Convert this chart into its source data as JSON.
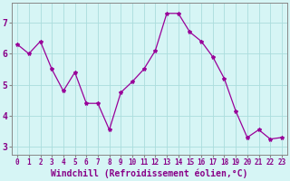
{
  "x": [
    0,
    1,
    2,
    3,
    4,
    5,
    6,
    7,
    8,
    9,
    10,
    11,
    12,
    13,
    14,
    15,
    16,
    17,
    18,
    19,
    20,
    21,
    22,
    23
  ],
  "y": [
    6.3,
    6.0,
    6.4,
    5.5,
    4.8,
    5.4,
    4.4,
    4.4,
    3.55,
    4.75,
    5.1,
    5.5,
    6.1,
    7.3,
    7.3,
    6.7,
    6.4,
    5.9,
    5.2,
    4.15,
    3.3,
    3.55,
    3.25,
    3.3
  ],
  "line_color": "#990099",
  "marker": "*",
  "marker_size": 3,
  "bg_color": "#d6f5f5",
  "grid_color": "#aadddd",
  "xlabel": "Windchill (Refroidissement éolien,°C)",
  "xlabel_fontsize": 7,
  "ylabel_ticks": [
    3,
    4,
    5,
    6,
    7
  ],
  "xtick_labels": [
    "0",
    "1",
    "2",
    "3",
    "4",
    "5",
    "6",
    "7",
    "8",
    "9",
    "10",
    "11",
    "12",
    "13",
    "14",
    "15",
    "16",
    "17",
    "18",
    "19",
    "20",
    "21",
    "22",
    "23"
  ],
  "xlim": [
    -0.5,
    23.5
  ],
  "ylim": [
    2.75,
    7.65
  ],
  "tick_color": "#880088",
  "ytick_fontsize": 7,
  "xtick_fontsize": 5.5,
  "border_color": "#888888"
}
